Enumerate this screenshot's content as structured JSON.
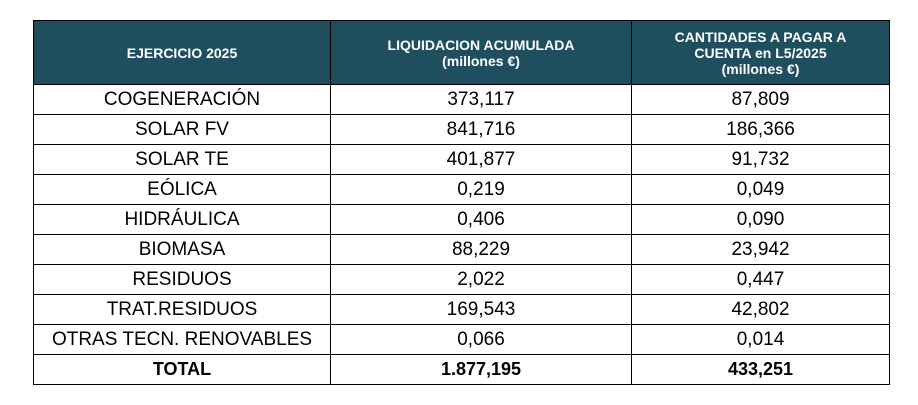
{
  "table": {
    "headers": {
      "col1": {
        "line1": "EJERCICIO 2025"
      },
      "col2": {
        "line1": "LIQUIDACION ACUMULADA",
        "line2": "(millones €)"
      },
      "col3": {
        "line1": "CANTIDADES A PAGAR A",
        "line2": "CUENTA en L5/2025",
        "line3": "(millones €)"
      }
    },
    "rows": [
      {
        "tech": "COGENERACIÓN",
        "liquidacion": "373,117",
        "pagar": "87,809"
      },
      {
        "tech": "SOLAR FV",
        "liquidacion": "841,716",
        "pagar": "186,366"
      },
      {
        "tech": "SOLAR TE",
        "liquidacion": "401,877",
        "pagar": "91,732"
      },
      {
        "tech": "EÓLICA",
        "liquidacion": "0,219",
        "pagar": "0,049"
      },
      {
        "tech": "HIDRÁULICA",
        "liquidacion": "0,406",
        "pagar": "0,090"
      },
      {
        "tech": "BIOMASA",
        "liquidacion": "88,229",
        "pagar": "23,942"
      },
      {
        "tech": "RESIDUOS",
        "liquidacion": "2,022",
        "pagar": "0,447"
      },
      {
        "tech": "TRAT.RESIDUOS",
        "liquidacion": "169,543",
        "pagar": "42,802"
      },
      {
        "tech": "OTRAS TECN. RENOVABLES",
        "liquidacion": "0,066",
        "pagar": "0,014"
      }
    ],
    "total": {
      "label": "TOTAL",
      "liquidacion": "1.877,195",
      "pagar": "433,251"
    },
    "colors": {
      "header_bg": "#1f4e5f",
      "header_text": "#ffffff",
      "border": "#000000"
    }
  }
}
